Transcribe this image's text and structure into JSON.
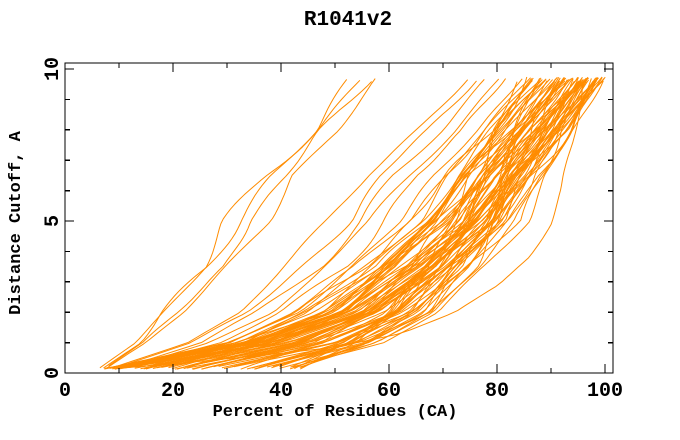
{
  "page": {
    "background": "#ffffff"
  },
  "chart_data": {
    "type": "line",
    "title": "R1041v2",
    "xlabel": "Percent of Residues (CA)",
    "ylabel": "Distance Cutoff, A",
    "xlim": [
      0,
      101.5
    ],
    "ylim": [
      0,
      10.2
    ],
    "x_major_ticks": [
      0,
      20,
      40,
      60,
      80,
      100
    ],
    "x_minor_ticks": [
      10,
      30,
      50,
      70,
      90
    ],
    "y_major_ticks": [
      0,
      5,
      10
    ],
    "y_minor_ticks": [
      1,
      2,
      3,
      4,
      6,
      7,
      8,
      9
    ],
    "grid": "off",
    "legend": "none",
    "curve_color": "#ff8c00",
    "axis_color": "#000000",
    "n_curves": 89,
    "curve_semantics": "Each orange curve is one predicted model: x = percent of CA residues fitting under distance cutoff y (Angstroms); curves run from ~(7,0.2) at lower left up to y~9.7 at top",
    "anchor_y_levels": [
      0.15,
      1,
      2,
      3.5,
      5,
      6.5,
      8,
      9.7
    ],
    "growth_profile_linear": [
      0,
      0.12,
      0.24,
      0.4,
      0.53,
      0.66,
      0.83,
      1
    ],
    "growth_profile_bundle": [
      0,
      0.32,
      0.51,
      0.65,
      0.76,
      0.83,
      0.91,
      1
    ],
    "families": {
      "early_risers": {
        "count": 4,
        "top_x": [
          53,
          54.5,
          57,
          58.5
        ],
        "bottom_x": [
          6.5,
          7,
          7.5,
          8
        ]
      },
      "mid_models": {
        "count": 6,
        "top_x": [
          74,
          76,
          78,
          80,
          82,
          84
        ],
        "bottom_x": [
          8,
          9,
          10,
          11,
          12,
          14
        ]
      },
      "main_bundle": {
        "count": 78,
        "top_x_range": [
          85,
          100
        ],
        "bottom_x_range": [
          7,
          45
        ]
      },
      "low_outlier": {
        "count": 1,
        "points": [
          [
            6.5,
            0.1
          ],
          [
            20,
            0.3
          ],
          [
            35,
            0.55
          ],
          [
            50,
            0.85
          ],
          [
            62,
            1.3
          ],
          [
            72,
            2.0
          ],
          [
            80,
            2.9
          ],
          [
            85,
            3.8
          ],
          [
            89,
            4.9
          ],
          [
            92,
            6.1
          ],
          [
            94.5,
            7.6
          ],
          [
            96,
            8.8
          ],
          [
            97,
            9.7
          ]
        ]
      }
    }
  }
}
